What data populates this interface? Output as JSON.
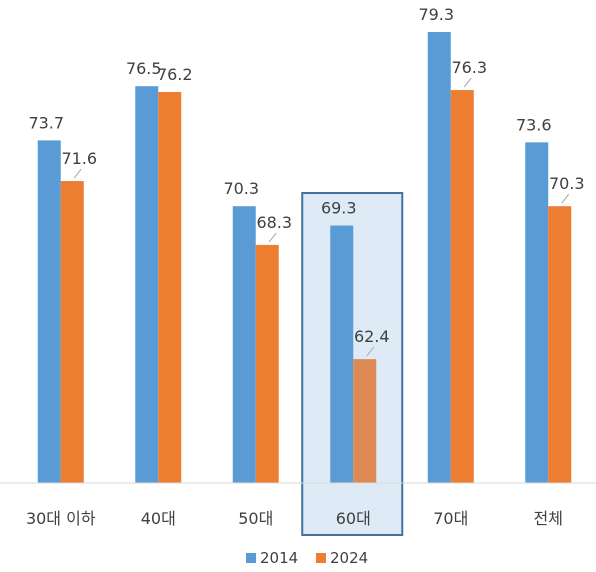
{
  "chart_data": {
    "type": "bar",
    "categories": [
      "30대 이하",
      "40대",
      "50대",
      "60대",
      "70대",
      "전체"
    ],
    "series": [
      {
        "name": "2014",
        "values": [
          73.7,
          76.5,
          70.3,
          69.3,
          79.3,
          73.6
        ],
        "color": "#5B9BD5"
      },
      {
        "name": "2024",
        "values": [
          71.6,
          76.2,
          68.3,
          62.4,
          76.3,
          70.3
        ],
        "color": "#ED7D31"
      }
    ],
    "ylim": [
      56,
      79.3
    ],
    "grid": false,
    "legend_position": "bottom",
    "highlight": {
      "category": "60대",
      "box_color": "#41719C",
      "fill": "#DEEBF7"
    }
  }
}
